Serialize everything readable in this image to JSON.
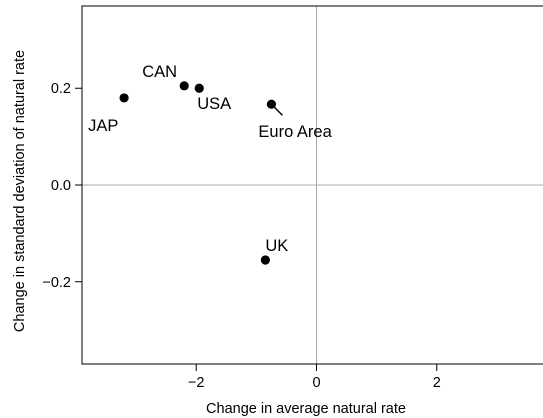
{
  "chart_data": {
    "type": "scatter",
    "title": "",
    "xlabel": "Change in average natural rate",
    "ylabel": "Change in standard deviation of natural rate",
    "xlim": [
      -3.9,
      3.9
    ],
    "ylim": [
      -0.37,
      0.37
    ],
    "xticks": [
      {
        "value": -2,
        "label": "−2"
      },
      {
        "value": 0,
        "label": "0"
      },
      {
        "value": 2,
        "label": "2"
      }
    ],
    "yticks": [
      {
        "value": -0.2,
        "label": "−0.2"
      },
      {
        "value": 0.0,
        "label": "0.0"
      },
      {
        "value": 0.2,
        "label": "0.2"
      }
    ],
    "reference_lines": {
      "x": 0,
      "y": 0
    },
    "grid": false,
    "points": [
      {
        "label": "JAP",
        "x": -3.2,
        "y": 0.18
      },
      {
        "label": "CAN",
        "x": -2.2,
        "y": 0.205
      },
      {
        "label": "USA",
        "x": -1.95,
        "y": 0.2
      },
      {
        "label": "Euro Area",
        "x": -0.75,
        "y": 0.167
      },
      {
        "label": "UK",
        "x": -0.85,
        "y": -0.155
      }
    ],
    "colors": {
      "point": "#000000",
      "frame": "#000000",
      "reference_line": "#aaaaaa"
    }
  }
}
